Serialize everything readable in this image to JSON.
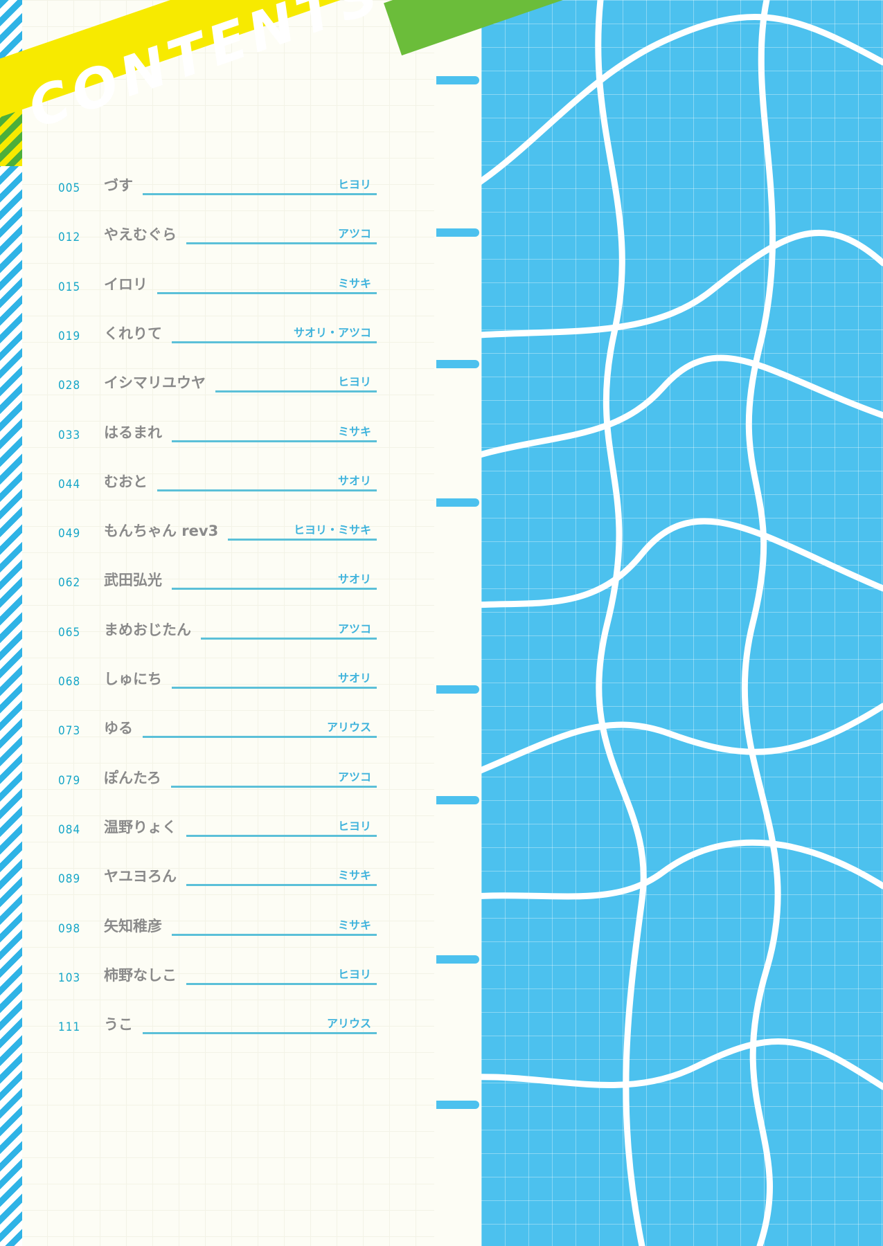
{
  "header": {
    "title": "CONTENTS"
  },
  "colors": {
    "accent_blue": "#4cc1ee",
    "banner_yellow": "#f7ea00",
    "banner_green": "#6bbd3a",
    "title_gray": "#8a8a8a",
    "number_teal": "#16a6c8"
  },
  "entries": [
    {
      "page": "005",
      "title": "づす",
      "author": "ヒヨリ"
    },
    {
      "page": "012",
      "title": "やえむぐら",
      "author": "アツコ"
    },
    {
      "page": "015",
      "title": "イロリ",
      "author": "ミサキ"
    },
    {
      "page": "019",
      "title": "くれりて",
      "author": "サオリ・アツコ"
    },
    {
      "page": "028",
      "title": "イシマリユウヤ",
      "author": "ヒヨリ"
    },
    {
      "page": "033",
      "title": "はるまれ",
      "author": "ミサキ"
    },
    {
      "page": "044",
      "title": "むおと",
      "author": "サオリ"
    },
    {
      "page": "049",
      "title": "もんちゃん rev3",
      "author": "ヒヨリ・ミサキ"
    },
    {
      "page": "062",
      "title": "武田弘光",
      "author": "サオリ"
    },
    {
      "page": "065",
      "title": "まめおじたん",
      "author": "アツコ"
    },
    {
      "page": "068",
      "title": "しゅにち",
      "author": "サオリ"
    },
    {
      "page": "073",
      "title": "ゆる",
      "author": "アリウス"
    },
    {
      "page": "079",
      "title": "ぽんたろ",
      "author": "アツコ"
    },
    {
      "page": "084",
      "title": "温野りょく",
      "author": "ヒヨリ"
    },
    {
      "page": "089",
      "title": "ヤユヨろん",
      "author": "ミサキ"
    },
    {
      "page": "098",
      "title": "矢知稚彦",
      "author": "ミサキ"
    },
    {
      "page": "103",
      "title": "柿野なしこ",
      "author": "ヒヨリ"
    },
    {
      "page": "111",
      "title": "うこ",
      "author": "アリウス"
    }
  ]
}
